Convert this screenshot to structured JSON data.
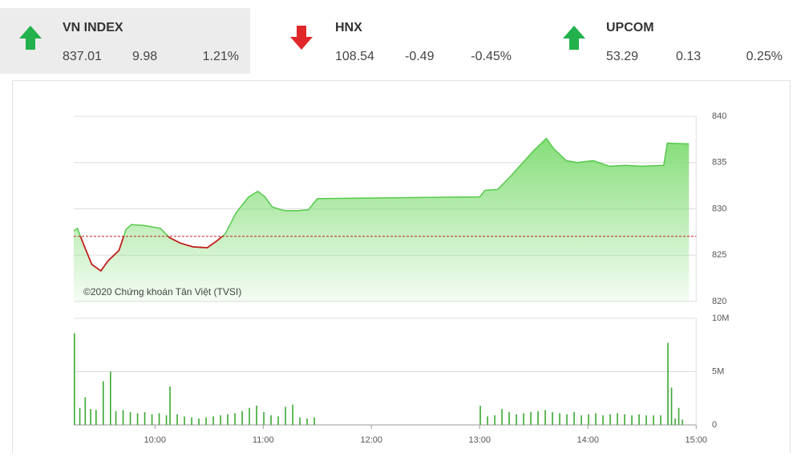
{
  "header": {
    "tickers": [
      {
        "name": "VN INDEX",
        "value": "837.01",
        "change": "9.98",
        "pct": "1.21%",
        "color": "#22b14c",
        "direction": "up"
      },
      {
        "name": "HNX",
        "value": "108.54",
        "change": "-0.49",
        "pct": "-0.45%",
        "color": "#e0282b",
        "direction": "down"
      },
      {
        "name": "UPCOM",
        "value": "53.29",
        "change": "0.13",
        "pct": "0.25%",
        "color": "#22b14c",
        "direction": "up"
      }
    ]
  },
  "chart_data": [
    {
      "type": "line",
      "annotation": "©2020 Chứng khoán Tân Việt (TVSI)",
      "x": [
        555,
        557,
        561,
        565,
        570,
        574,
        580,
        584,
        587,
        594,
        603,
        608,
        614,
        621,
        629,
        634,
        639,
        645,
        652,
        657,
        661,
        665,
        672,
        679,
        685,
        690,
        780,
        783,
        790,
        797,
        803,
        810,
        817,
        821,
        828,
        834,
        843,
        852,
        861,
        870,
        882,
        884,
        896
      ],
      "values": [
        827.6,
        827.9,
        825.9,
        824.0,
        823.3,
        824.4,
        825.5,
        827.8,
        828.3,
        828.2,
        827.9,
        826.9,
        826.3,
        825.9,
        825.8,
        826.5,
        827.3,
        829.6,
        831.3,
        831.9,
        831.3,
        830.2,
        829.8,
        829.8,
        829.9,
        831.1,
        831.3,
        832.0,
        832.1,
        833.5,
        834.8,
        836.3,
        837.6,
        836.5,
        835.2,
        835.0,
        835.2,
        834.6,
        834.7,
        834.6,
        834.7,
        837.1,
        837.01
      ],
      "reference": 827.03,
      "color": "#55c94a",
      "below_color": "#c41e1e",
      "xlim": [
        555,
        900
      ],
      "ylim": [
        820,
        840
      ],
      "yticks": [
        820,
        825,
        830,
        835,
        840
      ]
    },
    {
      "type": "bar",
      "color": "#3aa832",
      "x": [
        555,
        558,
        561,
        564,
        567,
        571,
        575,
        578,
        582,
        586,
        590,
        594,
        598,
        602,
        606,
        608,
        612,
        616,
        620,
        624,
        628,
        632,
        636,
        640,
        644,
        648,
        652,
        656,
        660,
        664,
        668,
        672,
        676,
        680,
        684,
        688,
        780,
        784,
        788,
        792,
        796,
        800,
        804,
        808,
        812,
        816,
        820,
        824,
        828,
        832,
        836,
        840,
        844,
        848,
        852,
        856,
        860,
        864,
        868,
        872,
        876,
        880,
        884,
        886,
        888,
        890,
        892
      ],
      "values": [
        8600000,
        1600000,
        2600000,
        1500000,
        1400000,
        4100000,
        5000000,
        1300000,
        1400000,
        1200000,
        1100000,
        1200000,
        1000000,
        1100000,
        900000,
        3600000,
        1000000,
        800000,
        700000,
        600000,
        700000,
        800000,
        900000,
        1000000,
        1100000,
        1300000,
        1600000,
        1800000,
        1200000,
        900000,
        800000,
        1700000,
        1900000,
        700000,
        600000,
        700000,
        1800000,
        800000,
        900000,
        1500000,
        1200000,
        1000000,
        1100000,
        1200000,
        1300000,
        1400000,
        1200000,
        1100000,
        1000000,
        1200000,
        900000,
        1000000,
        1100000,
        900000,
        1000000,
        1100000,
        1000000,
        900000,
        1000000,
        900000,
        900000,
        900000,
        7700000,
        3500000,
        600000,
        1600000,
        500000
      ],
      "xlim": [
        555,
        900
      ],
      "ylim": [
        0,
        10000000
      ],
      "yticks": [
        0,
        {
          "value": 5000000,
          "label": "5M"
        },
        {
          "value": 10000000,
          "label": "10M"
        }
      ],
      "xticks": [
        {
          "value": 600,
          "label": "10:00"
        },
        {
          "value": 660,
          "label": "11:00"
        },
        {
          "value": 720,
          "label": "12:00"
        },
        {
          "value": 780,
          "label": "13:00"
        },
        {
          "value": 840,
          "label": "14:00"
        },
        {
          "value": 900,
          "label": "15:00"
        }
      ]
    }
  ]
}
